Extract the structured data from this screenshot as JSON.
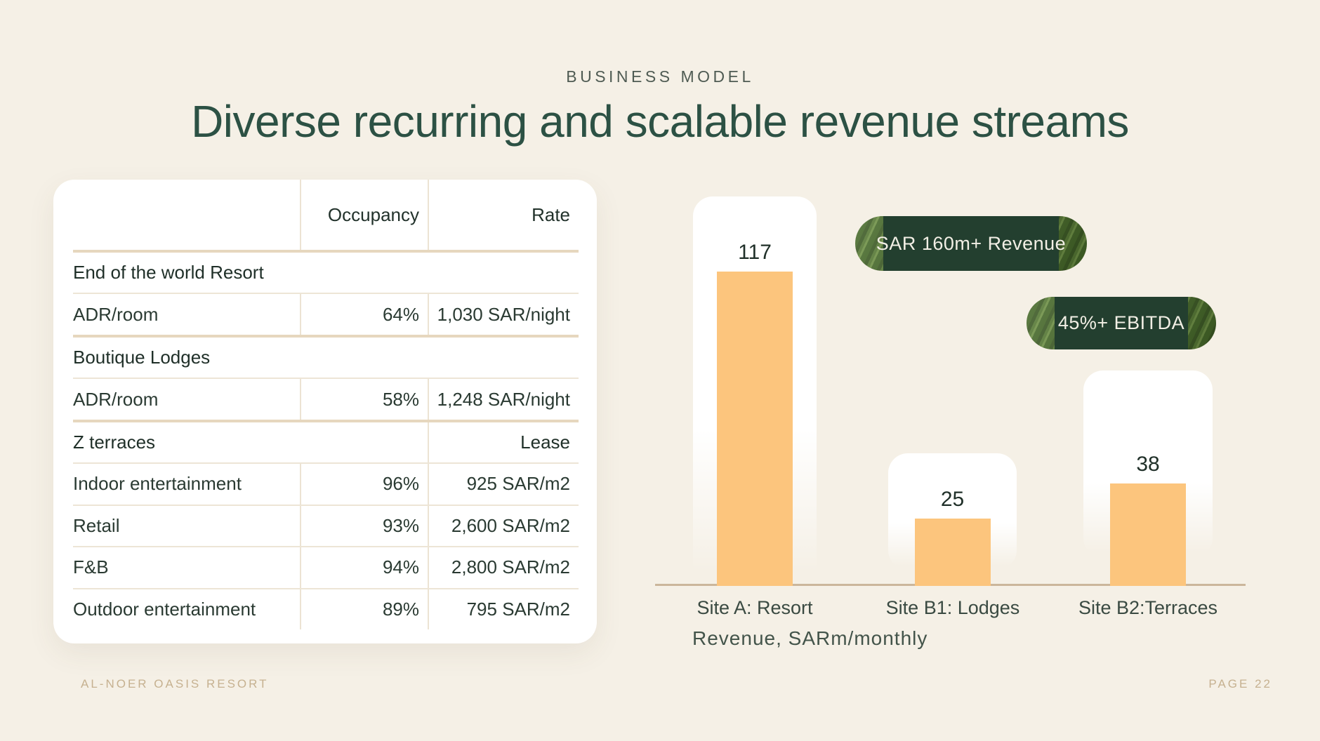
{
  "slide": {
    "eyebrow": "BUSINESS MODEL",
    "title": "Diverse recurring and scalable revenue streams",
    "footer_left": "AL-NOER OASIS RESORT",
    "footer_right": "PAGE 22"
  },
  "table": {
    "columns": [
      "",
      "Occupancy",
      "Rate"
    ],
    "rows": [
      {
        "type": "section",
        "label": "End of the world Resort",
        "occupancy": "",
        "rate": ""
      },
      {
        "type": "data",
        "label": "ADR/room",
        "occupancy": "64%",
        "rate": "1,030 SAR/night"
      },
      {
        "type": "section",
        "label": "Boutique Lodges",
        "occupancy": "",
        "rate": ""
      },
      {
        "type": "data",
        "label": "ADR/room",
        "occupancy": "58%",
        "rate": "1,248 SAR/night"
      },
      {
        "type": "section",
        "label": "Z terraces",
        "occupancy": "",
        "rate": "Lease"
      },
      {
        "type": "data",
        "label": "Indoor entertainment",
        "occupancy": "96%",
        "rate": "925 SAR/m2"
      },
      {
        "type": "data",
        "label": "Retail",
        "occupancy": "93%",
        "rate": "2,600 SAR/m2"
      },
      {
        "type": "data",
        "label": "F&B",
        "occupancy": "94%",
        "rate": "2,800 SAR/m2"
      },
      {
        "type": "data",
        "label": "Outdoor entertainment",
        "occupancy": "89%",
        "rate": "795 SAR/m2"
      }
    ]
  },
  "badges": [
    {
      "label": "SAR 160m+ Revenue"
    },
    {
      "label": "45%+ EBITDA"
    }
  ],
  "chart_data": {
    "type": "bar",
    "categories": [
      "Site A: Resort",
      "Site B1: Lodges",
      "Site B2:Terraces"
    ],
    "values": [
      117,
      25,
      38
    ],
    "title": "",
    "xlabel": "Revenue, SARm/monthly",
    "ylabel": "",
    "ylim": [
      0,
      130
    ],
    "grid": false,
    "legend": false,
    "bar_color": "#FCC57D"
  },
  "colors": {
    "background": "#F5F0E6",
    "title_green": "#2C5144",
    "bar_orange": "#FCC57D",
    "badge_green": "#233F2F",
    "axis_tan": "#CBB69B",
    "divider_tan": "#E6D7BE",
    "footer_tan": "#C6B190"
  }
}
